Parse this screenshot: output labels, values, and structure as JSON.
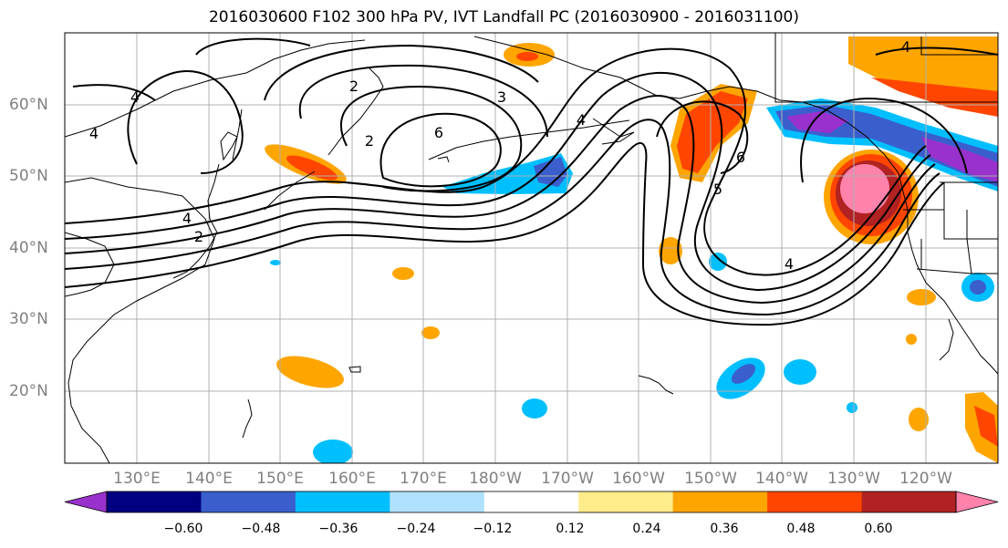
{
  "title": "2016030600 F102 300 hPa PV, IVT Landfall PC (2016030900 - 2016031100)",
  "lon_labels": [
    "130°E",
    "140°E",
    "150°E",
    "160°E",
    "170°E",
    "180°W",
    "170°W",
    "160°W",
    "150°W",
    "140°W",
    "130°W",
    "120°W"
  ],
  "lat_labels": [
    "60°N",
    "50°N",
    "40°N",
    "30°N",
    "20°N"
  ],
  "contour_labels": [
    "4",
    "4",
    "2",
    "2",
    "3",
    "4",
    "6",
    "2",
    "5",
    "6",
    "4",
    "4",
    "4"
  ],
  "colorbar": {
    "colors": [
      "#9932CC",
      "#000080",
      "#3A5FCD",
      "#00BFFF",
      "#B0E2FF",
      "#FFFFFF",
      "#FFEC8B",
      "#FFA500",
      "#FF4500",
      "#B22222",
      "#FF82AB"
    ],
    "tick_labels": [
      "−0.60",
      "−0.48",
      "−0.36",
      "−0.24",
      "−0.12",
      "0.12",
      "0.24",
      "0.36",
      "0.48",
      "0.60"
    ]
  },
  "palette": {
    "grid": "#b0b0b0",
    "contour": "#000000",
    "tick_label": "#808080"
  }
}
